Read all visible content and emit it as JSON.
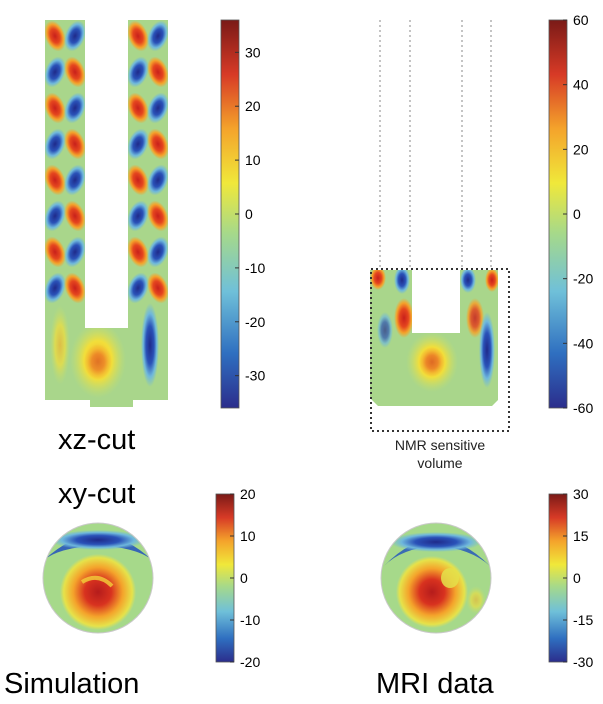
{
  "labels": {
    "xz_cut": "xz-cut",
    "xy_cut": "xy-cut",
    "simulation": "Simulation",
    "mri_data": "MRI data",
    "nmr_line1": "NMR sensitive",
    "nmr_line2": "volume"
  },
  "colorbars": {
    "sim_xz": {
      "min": -36,
      "max": 36,
      "ticks": [
        "30",
        "20",
        "10",
        "0",
        "-10",
        "-20",
        "-30"
      ],
      "values": [
        30,
        20,
        10,
        0,
        -10,
        -20,
        -30
      ]
    },
    "mri_xz": {
      "min": -60,
      "max": 60,
      "ticks": [
        "60",
        "40",
        "20",
        "0",
        "-20",
        "-40",
        "-60"
      ],
      "values": [
        60,
        40,
        20,
        0,
        -20,
        -40,
        -60
      ]
    },
    "sim_xy": {
      "min": -20,
      "max": 20,
      "ticks": [
        "20",
        "10",
        "0",
        "-10",
        "-20"
      ],
      "values": [
        20,
        10,
        0,
        -10,
        -20
      ]
    },
    "mri_xy": {
      "min": -30,
      "max": 30,
      "ticks": [
        "30",
        "15",
        "0",
        "-15",
        "-30"
      ],
      "values": [
        30,
        15,
        0,
        -15,
        -30
      ]
    }
  },
  "colormap": [
    "#2b2d8c",
    "#2f6fc0",
    "#6fc0d9",
    "#a6d98a",
    "#f0e83a",
    "#f4a32b",
    "#d73a26",
    "#7a1a17"
  ]
}
